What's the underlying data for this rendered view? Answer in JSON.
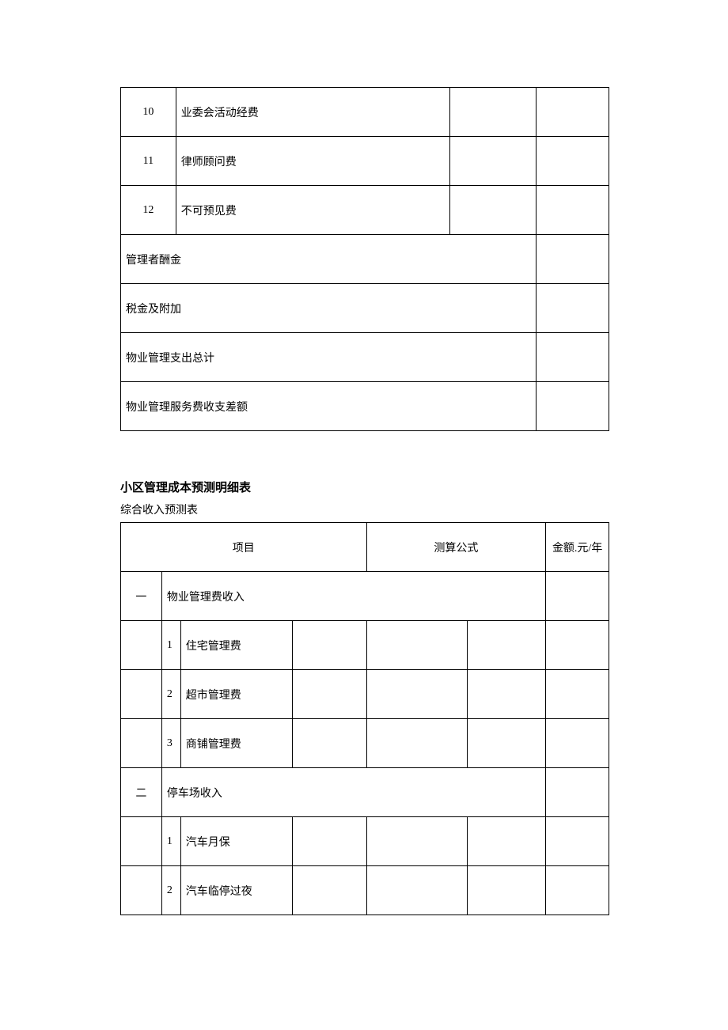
{
  "table1": {
    "rows": [
      {
        "num": "10",
        "label": "业委会活动经费",
        "v1": "",
        "v2": "",
        "span": false
      },
      {
        "num": "11",
        "label": "律师顾问费",
        "v1": "",
        "v2": "",
        "span": false
      },
      {
        "num": "12",
        "label": "不可预见费",
        "v1": "",
        "v2": "",
        "span": false
      },
      {
        "num": "",
        "label": "管理者酬金",
        "v1": "",
        "v2": "",
        "span": true
      },
      {
        "num": "",
        "label": "税金及附加",
        "v1": "",
        "v2": "",
        "span": true
      },
      {
        "num": "",
        "label": "物业管理支出总计",
        "v1": "",
        "v2": "",
        "span": true
      },
      {
        "num": "",
        "label": "物业管理服务费收支差额",
        "v1": "",
        "v2": "",
        "span": true
      }
    ]
  },
  "section": {
    "title": "小区管理成本预测明细表",
    "subtitle": "综合收入预测表"
  },
  "table2": {
    "headers": {
      "project": "项目",
      "formula": "测算公式",
      "amount": "金额.元/年"
    },
    "rows": [
      {
        "type": "group",
        "idx": "一",
        "label": "物业管理费收入"
      },
      {
        "type": "item",
        "sub": "1",
        "label": "住宅管理费"
      },
      {
        "type": "item",
        "sub": "2",
        "label": "超市管理费"
      },
      {
        "type": "item",
        "sub": "3",
        "label": "商铺管理费"
      },
      {
        "type": "group",
        "idx": "二",
        "label": "停车场收入"
      },
      {
        "type": "item",
        "sub": "1",
        "label": "汽车月保"
      },
      {
        "type": "item",
        "sub": "2",
        "label": "汽车临停过夜"
      }
    ]
  }
}
